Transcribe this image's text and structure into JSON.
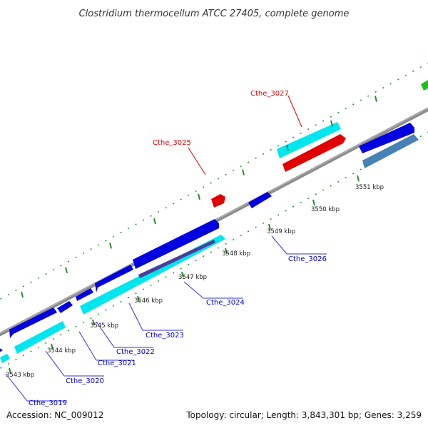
{
  "title": "Clostridium thermocellum ATCC 27405, complete genome",
  "footer": {
    "accession": "Accession: NC_009012",
    "summary": "Topology: circular; Length: 3,843,301 bp; Genes: 3,259"
  },
  "colors": {
    "backbone": "#8c8c8c",
    "tick": "#2e8b2e",
    "label_blue": "#0000cc",
    "label_red": "#e60000",
    "callout_blue": "#3333cc",
    "callout_red": "#e60000",
    "gene_blue": "#0000e0",
    "gene_red": "#e00000",
    "gene_cyan": "#00e6ee",
    "gene_steel": "#4682b4",
    "gene_purple": "#4b3c9a",
    "gene_green": "#22bb22"
  },
  "ticks": [
    {
      "kbp": 3543,
      "label": "3543 kbp"
    },
    {
      "kbp": 3544,
      "label": "3544 kbp"
    },
    {
      "kbp": 3545,
      "label": "3545 kbp"
    },
    {
      "kbp": 3546,
      "label": "3546 kbp"
    },
    {
      "kbp": 3547,
      "label": "3547 kbp"
    },
    {
      "kbp": 3548,
      "label": "3548 kbp"
    },
    {
      "kbp": 3549,
      "label": "3549 kbp"
    },
    {
      "kbp": 3550,
      "label": "3550 kbp"
    },
    {
      "kbp": 3551,
      "label": "3551 kbp"
    }
  ],
  "gene_labels": [
    {
      "name": "Cthe_3019",
      "color": "blue"
    },
    {
      "name": "Cthe_3020",
      "color": "blue"
    },
    {
      "name": "Cthe_3021",
      "color": "blue"
    },
    {
      "name": "Cthe_3022",
      "color": "blue"
    },
    {
      "name": "Cthe_3023",
      "color": "blue"
    },
    {
      "name": "Cthe_3024",
      "color": "blue"
    },
    {
      "name": "Cthe_3025",
      "color": "red"
    },
    {
      "name": "Cthe_3026",
      "color": "blue"
    },
    {
      "name": "Cthe_3027",
      "color": "red"
    }
  ]
}
